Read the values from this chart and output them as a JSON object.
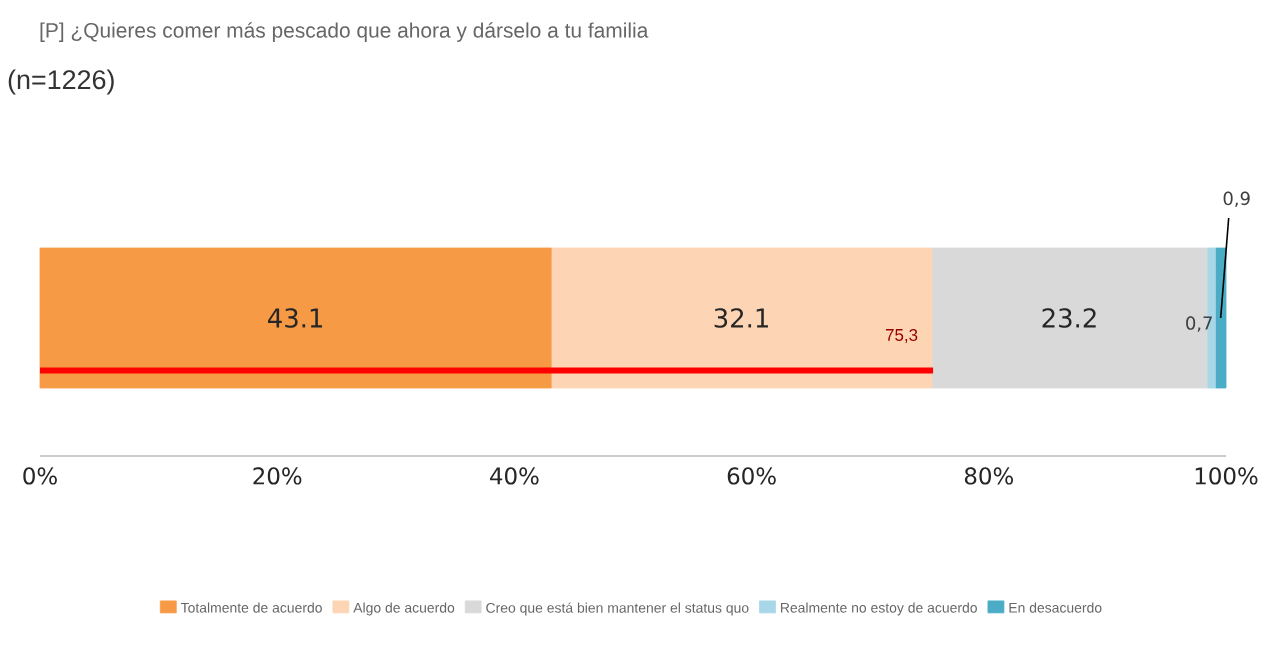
{
  "chart_data": {
    "type": "bar",
    "orientation": "horizontal",
    "stacked": true,
    "title": "[P] ¿Quieres comer más pescado que ahora y dárselo a tu familia",
    "subtitle": "(n=1226)",
    "categories": [
      null
    ],
    "series": [
      {
        "name": "Totalmente de acuerdo",
        "color": "#f79a45",
        "values": [
          43.1
        ],
        "value_labels": [
          "43.1"
        ]
      },
      {
        "name": "Algo de acuerdo",
        "color": "#fdd5b4",
        "values": [
          32.1
        ],
        "value_labels": [
          "32.1"
        ]
      },
      {
        "name": "Creo que está bien mantener el status quo",
        "color": "#d9d9d9",
        "values": [
          23.2
        ],
        "value_labels": [
          "23.2"
        ]
      },
      {
        "name": "Realmente no estoy de acuerdo",
        "color": "#a8d8e8",
        "values": [
          0.7
        ],
        "value_labels": [
          "0,7"
        ]
      },
      {
        "name": "En desacuerdo",
        "color": "#4bacc6",
        "values": [
          0.9
        ],
        "value_labels": [
          "0,9"
        ]
      }
    ],
    "bands": [
      {
        "axis": "x",
        "from": 0,
        "to": 75.3,
        "label": "75,3",
        "color": "#ff0000"
      }
    ],
    "xlim": [
      0,
      100
    ],
    "xticks": [
      {
        "value": 0,
        "label": "0%"
      },
      {
        "value": 20,
        "label": "20%"
      },
      {
        "value": 40,
        "label": "40%"
      },
      {
        "value": 60,
        "label": "60%"
      },
      {
        "value": 80,
        "label": "80%"
      },
      {
        "value": 100,
        "label": "100%"
      }
    ],
    "legend": "bottom"
  }
}
